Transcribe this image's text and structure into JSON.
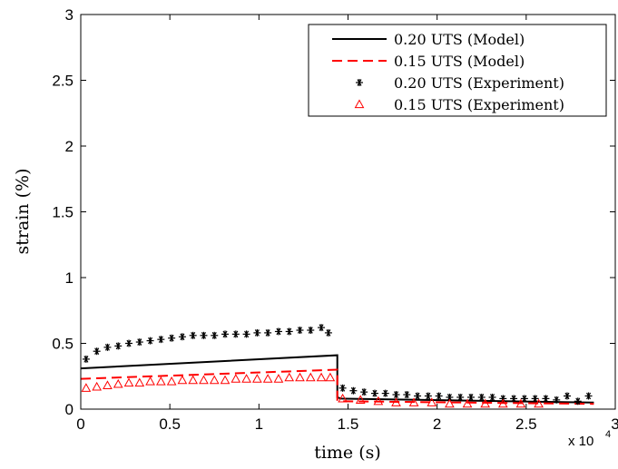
{
  "chart_data": {
    "type": "line",
    "xlabel": "time (s)",
    "ylabel": "strain (%)",
    "x_multiplier_label": "x 10",
    "x_multiplier_exp": "4",
    "xlim": [
      0,
      30000
    ],
    "ylim": [
      0,
      3
    ],
    "xticks": [
      0,
      5000,
      10000,
      15000,
      20000,
      25000,
      30000
    ],
    "xtick_labels": [
      "0",
      "0.5",
      "1",
      "1.5",
      "2",
      "2.5",
      "3"
    ],
    "yticks": [
      0,
      0.5,
      1,
      1.5,
      2,
      2.5,
      3
    ],
    "ytick_labels": [
      "0",
      "0.5",
      "1",
      "1.5",
      "2",
      "2.5",
      "3"
    ],
    "grid": false,
    "legend_position": "top-right",
    "colors": {
      "black": "#000000",
      "red": "#ff0000"
    },
    "series": [
      {
        "name": "0.20 UTS (Model)",
        "style": "solid",
        "color": "#000000",
        "x": [
          0,
          14400,
          14400,
          14600,
          28800
        ],
        "y": [
          0.31,
          0.41,
          0.09,
          0.08,
          0.05
        ]
      },
      {
        "name": "0.15 UTS (Model)",
        "style": "dashed",
        "color": "#ff0000",
        "x": [
          0,
          14400,
          14400,
          14600,
          28800
        ],
        "y": [
          0.23,
          0.3,
          0.07,
          0.06,
          0.04
        ]
      },
      {
        "name": "0.20 UTS (Experiment)",
        "style": "asterisk",
        "color": "#000000",
        "x": [
          300,
          900,
          1500,
          2100,
          2700,
          3300,
          3900,
          4500,
          5100,
          5700,
          6300,
          6900,
          7500,
          8100,
          8700,
          9300,
          9900,
          10500,
          11100,
          11700,
          12300,
          12900,
          13500,
          13900,
          14700,
          15300,
          15900,
          16500,
          17100,
          17700,
          18300,
          18900,
          19500,
          20100,
          20700,
          21300,
          21900,
          22500,
          23100,
          23700,
          24300,
          24900,
          25500,
          26100,
          26700,
          27300,
          27900,
          28500
        ],
        "y": [
          0.38,
          0.44,
          0.47,
          0.48,
          0.5,
          0.51,
          0.52,
          0.53,
          0.54,
          0.55,
          0.56,
          0.56,
          0.56,
          0.57,
          0.57,
          0.57,
          0.58,
          0.58,
          0.59,
          0.59,
          0.6,
          0.6,
          0.62,
          0.58,
          0.16,
          0.14,
          0.13,
          0.12,
          0.12,
          0.11,
          0.11,
          0.1,
          0.1,
          0.1,
          0.09,
          0.09,
          0.09,
          0.09,
          0.09,
          0.08,
          0.08,
          0.08,
          0.08,
          0.08,
          0.07,
          0.1,
          0.06,
          0.1
        ]
      },
      {
        "name": "0.15 UTS (Experiment)",
        "style": "triangle",
        "color": "#ff0000",
        "x": [
          300,
          900,
          1500,
          2100,
          2700,
          3300,
          3900,
          4500,
          5100,
          5700,
          6300,
          6900,
          7500,
          8100,
          8700,
          9300,
          9900,
          10500,
          11100,
          11700,
          12300,
          12900,
          13500,
          14000,
          14700,
          15700,
          16700,
          17700,
          18700,
          19700,
          20700,
          21700,
          22700,
          23700,
          24700,
          25700
        ],
        "y": [
          0.16,
          0.17,
          0.18,
          0.19,
          0.2,
          0.2,
          0.21,
          0.21,
          0.21,
          0.22,
          0.22,
          0.22,
          0.22,
          0.22,
          0.23,
          0.23,
          0.23,
          0.23,
          0.23,
          0.24,
          0.24,
          0.24,
          0.24,
          0.24,
          0.08,
          0.07,
          0.06,
          0.05,
          0.05,
          0.05,
          0.04,
          0.04,
          0.04,
          0.04,
          0.04,
          0.04
        ]
      }
    ]
  }
}
